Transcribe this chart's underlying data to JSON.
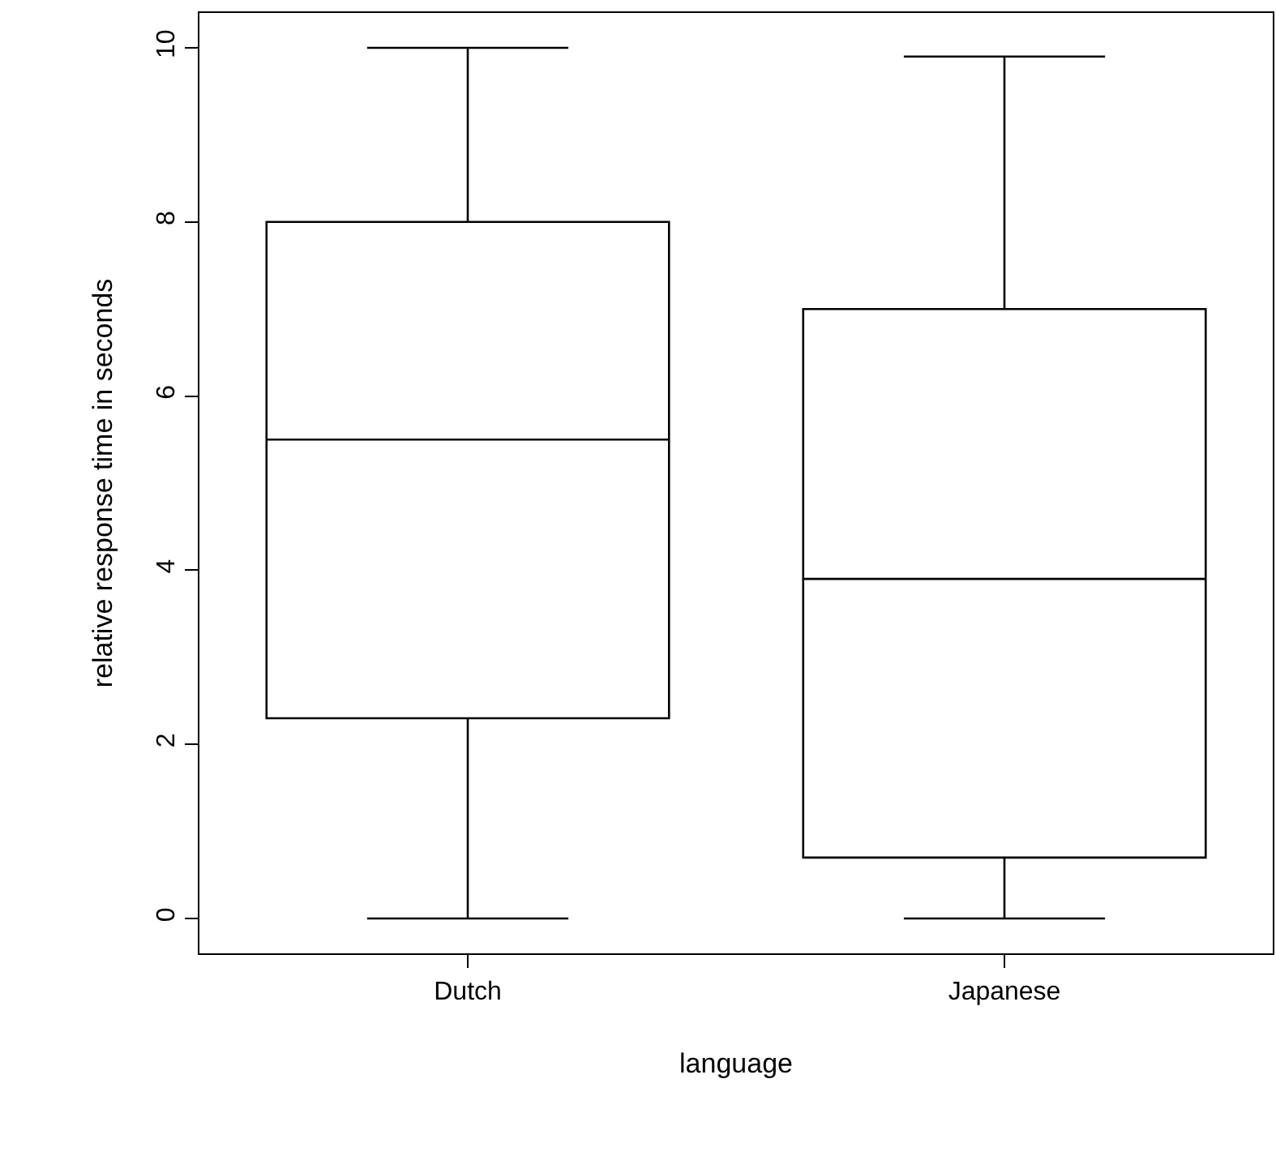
{
  "chart_data": {
    "type": "box",
    "xlabel": "language",
    "ylabel": "relative response time in seconds",
    "categories": [
      "Dutch",
      "Japanese"
    ],
    "boxes": [
      {
        "low": 0,
        "q1": 2.3,
        "median": 5.5,
        "q3": 8.0,
        "high": 10.0
      },
      {
        "low": 0,
        "q1": 0.7,
        "median": 3.9,
        "q3": 7.0,
        "high": 9.9
      }
    ],
    "ylim": [
      -0.4,
      10.4
    ],
    "yticks": [
      0,
      2,
      4,
      6,
      8,
      10
    ]
  }
}
